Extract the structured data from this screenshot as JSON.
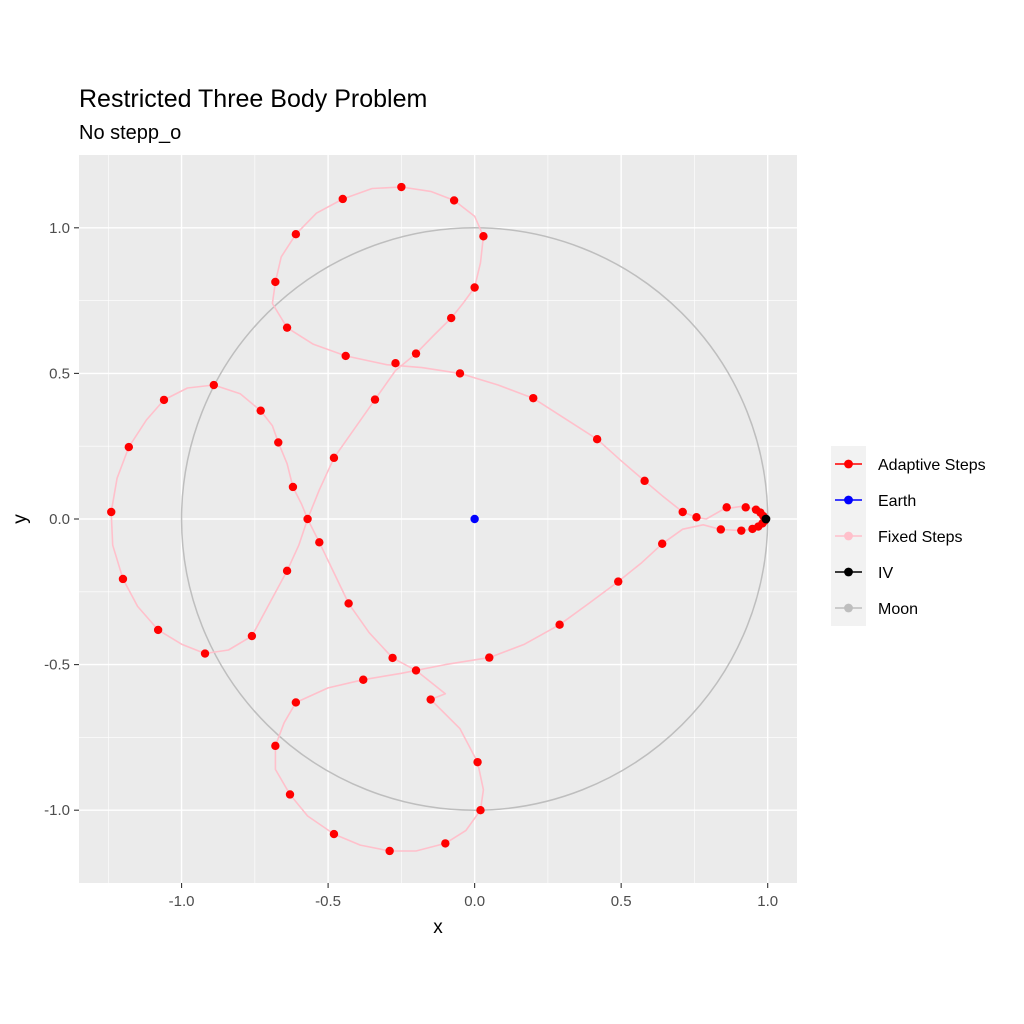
{
  "chart_data": {
    "type": "line",
    "title": "Restricted Three Body Problem",
    "subtitle": "No stepp_o",
    "xlabel": "x",
    "ylabel": "y",
    "xlim": [
      -1.35,
      1.1
    ],
    "ylim": [
      -1.25,
      1.25
    ],
    "xticks": [
      -1.0,
      -0.5,
      0.0,
      0.5,
      1.0
    ],
    "xtick_labels": [
      "-1.0",
      "-0.5",
      "0.0",
      "0.5",
      "1.0"
    ],
    "yticks": [
      -1.0,
      -0.5,
      0.0,
      0.5,
      1.0
    ],
    "ytick_labels": [
      "-1.0",
      "-0.5",
      "0.0",
      "0.5",
      "1.0"
    ],
    "grid": true,
    "legend_position": "right",
    "colors": {
      "adaptive": "#ff0000",
      "earth": "#0000ff",
      "fixed": "#ffc0cb",
      "iv": "#000000",
      "moon": "#bebebe",
      "panel_bg": "#ebebeb",
      "grid": "#ffffff"
    },
    "legend": [
      {
        "label": "Adaptive Steps",
        "color": "#ff0000"
      },
      {
        "label": "Earth",
        "color": "#0000ff"
      },
      {
        "label": "Fixed Steps",
        "color": "#ffc0cb"
      },
      {
        "label": "IV",
        "color": "#000000"
      },
      {
        "label": "Moon",
        "color": "#bebebe"
      }
    ],
    "moon_orbit": {
      "center": [
        0,
        0
      ],
      "radius": 1.0
    },
    "earth": {
      "x": 0.0,
      "y": 0.0
    },
    "iv": {
      "x": 0.994,
      "y": 0.0
    },
    "adaptive_points": [
      [
        0.994,
        0.0
      ],
      [
        0.985,
        0.01
      ],
      [
        0.975,
        0.022
      ],
      [
        0.96,
        0.032
      ],
      [
        0.925,
        0.04
      ],
      [
        0.86,
        0.04
      ],
      [
        0.757,
        0.006
      ],
      [
        0.71,
        0.024
      ],
      [
        0.58,
        0.131
      ],
      [
        0.418,
        0.274
      ],
      [
        0.2,
        0.415
      ],
      [
        -0.05,
        0.5
      ],
      [
        -0.2,
        0.568
      ],
      [
        -0.27,
        0.535
      ],
      [
        -0.44,
        0.56
      ],
      [
        -0.64,
        0.657
      ],
      [
        -0.68,
        0.814
      ],
      [
        -0.61,
        0.978
      ],
      [
        -0.45,
        1.099
      ],
      [
        -0.25,
        1.14
      ],
      [
        -0.07,
        1.094
      ],
      [
        0.03,
        0.971
      ],
      [
        0.0,
        0.795
      ],
      [
        -0.08,
        0.69
      ],
      [
        -0.34,
        0.41
      ],
      [
        -0.48,
        0.21
      ],
      [
        -0.57,
        0.0
      ],
      [
        -0.53,
        -0.08
      ],
      [
        -0.43,
        -0.29
      ],
      [
        -0.28,
        -0.477
      ],
      [
        -0.2,
        -0.52
      ],
      [
        -0.38,
        -0.552
      ],
      [
        -0.61,
        -0.63
      ],
      [
        -0.68,
        -0.779
      ],
      [
        -0.63,
        -0.946
      ],
      [
        -0.48,
        -1.082
      ],
      [
        -0.29,
        -1.14
      ],
      [
        -0.1,
        -1.114
      ],
      [
        0.02,
        -1.0
      ],
      [
        0.01,
        -0.835
      ],
      [
        -0.15,
        -0.62
      ],
      [
        0.05,
        -0.476
      ],
      [
        0.29,
        -0.363
      ],
      [
        0.49,
        -0.215
      ],
      [
        0.64,
        -0.085
      ],
      [
        0.84,
        -0.036
      ],
      [
        0.91,
        -0.04
      ],
      [
        0.948,
        -0.034
      ],
      [
        0.968,
        -0.026
      ],
      [
        0.982,
        -0.015
      ],
      [
        0.99,
        -0.006
      ],
      [
        -0.62,
        0.11
      ],
      [
        -0.67,
        0.263
      ],
      [
        -0.73,
        0.372
      ],
      [
        -0.89,
        0.46
      ],
      [
        -1.06,
        0.409
      ],
      [
        -1.18,
        0.247
      ],
      [
        -1.24,
        0.024
      ],
      [
        -1.2,
        -0.206
      ],
      [
        -1.08,
        -0.381
      ],
      [
        -0.92,
        -0.462
      ],
      [
        -0.76,
        -0.402
      ],
      [
        -0.64,
        -0.178
      ]
    ],
    "fixed_path": [
      [
        0.994,
        0.0
      ],
      [
        0.97,
        0.028
      ],
      [
        0.92,
        0.045
      ],
      [
        0.85,
        0.034
      ],
      [
        0.79,
        0.0
      ],
      [
        0.757,
        0.006
      ],
      [
        0.71,
        0.024
      ],
      [
        0.64,
        0.08
      ],
      [
        0.58,
        0.131
      ],
      [
        0.5,
        0.2
      ],
      [
        0.418,
        0.274
      ],
      [
        0.3,
        0.35
      ],
      [
        0.2,
        0.415
      ],
      [
        0.08,
        0.46
      ],
      [
        -0.05,
        0.5
      ],
      [
        -0.18,
        0.52
      ],
      [
        -0.3,
        0.53
      ],
      [
        -0.44,
        0.56
      ],
      [
        -0.55,
        0.6
      ],
      [
        -0.64,
        0.657
      ],
      [
        -0.69,
        0.74
      ],
      [
        -0.68,
        0.814
      ],
      [
        -0.66,
        0.9
      ],
      [
        -0.61,
        0.978
      ],
      [
        -0.54,
        1.05
      ],
      [
        -0.45,
        1.099
      ],
      [
        -0.35,
        1.135
      ],
      [
        -0.25,
        1.14
      ],
      [
        -0.15,
        1.125
      ],
      [
        -0.07,
        1.094
      ],
      [
        0.0,
        1.04
      ],
      [
        0.03,
        0.971
      ],
      [
        0.02,
        0.88
      ],
      [
        0.0,
        0.795
      ],
      [
        -0.04,
        0.74
      ],
      [
        -0.08,
        0.69
      ],
      [
        -0.14,
        0.63
      ],
      [
        -0.2,
        0.568
      ],
      [
        -0.27,
        0.51
      ],
      [
        -0.34,
        0.41
      ],
      [
        -0.41,
        0.31
      ],
      [
        -0.48,
        0.21
      ],
      [
        -0.53,
        0.1
      ],
      [
        -0.57,
        0.0
      ],
      [
        -0.6,
        -0.09
      ],
      [
        -0.64,
        -0.178
      ],
      [
        -0.7,
        -0.29
      ],
      [
        -0.76,
        -0.402
      ],
      [
        -0.84,
        -0.45
      ],
      [
        -0.92,
        -0.462
      ],
      [
        -1.0,
        -0.43
      ],
      [
        -1.08,
        -0.381
      ],
      [
        -1.15,
        -0.3
      ],
      [
        -1.2,
        -0.206
      ],
      [
        -1.235,
        -0.09
      ],
      [
        -1.24,
        0.024
      ],
      [
        -1.22,
        0.14
      ],
      [
        -1.18,
        0.247
      ],
      [
        -1.12,
        0.34
      ],
      [
        -1.06,
        0.409
      ],
      [
        -0.98,
        0.45
      ],
      [
        -0.89,
        0.46
      ],
      [
        -0.8,
        0.43
      ],
      [
        -0.73,
        0.372
      ],
      [
        -0.69,
        0.32
      ],
      [
        -0.67,
        0.263
      ],
      [
        -0.64,
        0.19
      ],
      [
        -0.62,
        0.11
      ],
      [
        -0.59,
        0.05
      ],
      [
        -0.57,
        0.0
      ],
      [
        -0.53,
        -0.08
      ],
      [
        -0.48,
        -0.185
      ],
      [
        -0.43,
        -0.29
      ],
      [
        -0.36,
        -0.39
      ],
      [
        -0.28,
        -0.477
      ],
      [
        -0.2,
        -0.52
      ],
      [
        -0.1,
        -0.6
      ],
      [
        -0.15,
        -0.62
      ],
      [
        -0.05,
        -0.72
      ],
      [
        0.01,
        -0.835
      ],
      [
        0.03,
        -0.93
      ],
      [
        0.02,
        -1.0
      ],
      [
        -0.03,
        -1.07
      ],
      [
        -0.1,
        -1.114
      ],
      [
        -0.2,
        -1.14
      ],
      [
        -0.29,
        -1.14
      ],
      [
        -0.39,
        -1.12
      ],
      [
        -0.48,
        -1.082
      ],
      [
        -0.57,
        -1.02
      ],
      [
        -0.63,
        -0.946
      ],
      [
        -0.68,
        -0.86
      ],
      [
        -0.68,
        -0.779
      ],
      [
        -0.65,
        -0.7
      ],
      [
        -0.61,
        -0.63
      ],
      [
        -0.5,
        -0.58
      ],
      [
        -0.38,
        -0.552
      ],
      [
        -0.25,
        -0.53
      ],
      [
        -0.1,
        -0.5
      ],
      [
        0.05,
        -0.476
      ],
      [
        0.17,
        -0.43
      ],
      [
        0.29,
        -0.363
      ],
      [
        0.39,
        -0.29
      ],
      [
        0.49,
        -0.215
      ],
      [
        0.57,
        -0.15
      ],
      [
        0.64,
        -0.085
      ],
      [
        0.71,
        -0.035
      ],
      [
        0.78,
        -0.02
      ],
      [
        0.84,
        -0.036
      ],
      [
        0.91,
        -0.04
      ],
      [
        0.948,
        -0.034
      ],
      [
        0.968,
        -0.026
      ],
      [
        0.982,
        -0.015
      ],
      [
        0.994,
        0.0
      ]
    ]
  }
}
